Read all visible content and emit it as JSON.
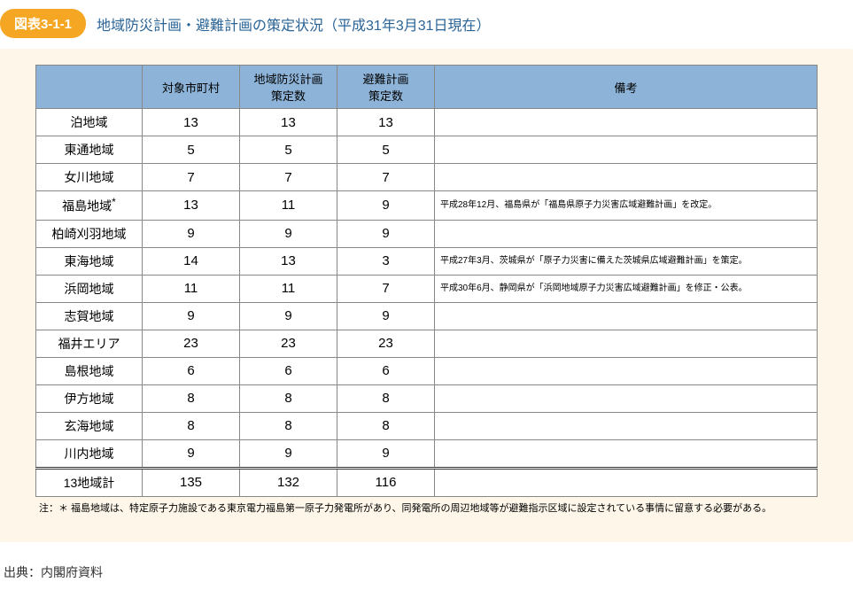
{
  "figure": {
    "label": "図表3-1-1",
    "title": "地域防災計画・避難計画の策定状況（平成31年3月31日現在）"
  },
  "table": {
    "columns": [
      "",
      "対象市町村",
      "地域防災計画\n策定数",
      "避難計画\n策定数",
      "備考"
    ],
    "rows": [
      {
        "region": "泊地域",
        "target": "13",
        "prevention": "13",
        "evacuation": "13",
        "remarks": ""
      },
      {
        "region": "東通地域",
        "target": "5",
        "prevention": "5",
        "evacuation": "5",
        "remarks": ""
      },
      {
        "region": "女川地域",
        "target": "7",
        "prevention": "7",
        "evacuation": "7",
        "remarks": ""
      },
      {
        "region": "福島地域",
        "asterisk": "*",
        "target": "13",
        "prevention": "11",
        "evacuation": "9",
        "remarks": "平成28年12月、福島県が「福島県原子力災害広域避難計画」を改定。"
      },
      {
        "region": "柏崎刈羽地域",
        "target": "9",
        "prevention": "9",
        "evacuation": "9",
        "remarks": ""
      },
      {
        "region": "東海地域",
        "target": "14",
        "prevention": "13",
        "evacuation": "3",
        "remarks": "平成27年3月、茨城県が「原子力災害に備えた茨城県広域避難計画」を策定。"
      },
      {
        "region": "浜岡地域",
        "target": "11",
        "prevention": "11",
        "evacuation": "7",
        "remarks": "平成30年6月、静岡県が「浜岡地域原子力災害広域避難計画」を修正・公表。"
      },
      {
        "region": "志賀地域",
        "target": "9",
        "prevention": "9",
        "evacuation": "9",
        "remarks": ""
      },
      {
        "region": "福井エリア",
        "target": "23",
        "prevention": "23",
        "evacuation": "23",
        "remarks": ""
      },
      {
        "region": "島根地域",
        "target": "6",
        "prevention": "6",
        "evacuation": "6",
        "remarks": ""
      },
      {
        "region": "伊方地域",
        "target": "8",
        "prevention": "8",
        "evacuation": "8",
        "remarks": ""
      },
      {
        "region": "玄海地域",
        "target": "8",
        "prevention": "8",
        "evacuation": "8",
        "remarks": ""
      },
      {
        "region": "川内地域",
        "target": "9",
        "prevention": "9",
        "evacuation": "9",
        "remarks": ""
      }
    ],
    "total": {
      "region": "13地域計",
      "target": "135",
      "prevention": "132",
      "evacuation": "116",
      "remarks": ""
    }
  },
  "footnote": "注：＊ 福島地域は、特定原子力施設である東京電力福島第一原子力発電所があり、同発電所の周辺地域等が避難指示区域に設定されている事情に留意する必要がある。",
  "source": "出典：内閣府資料",
  "styles": {
    "header_bg": "#8db4d8",
    "container_bg": "#fdf6e9",
    "label_bg": "#f5a623",
    "title_color": "#2a6496",
    "border_color": "#888888"
  }
}
